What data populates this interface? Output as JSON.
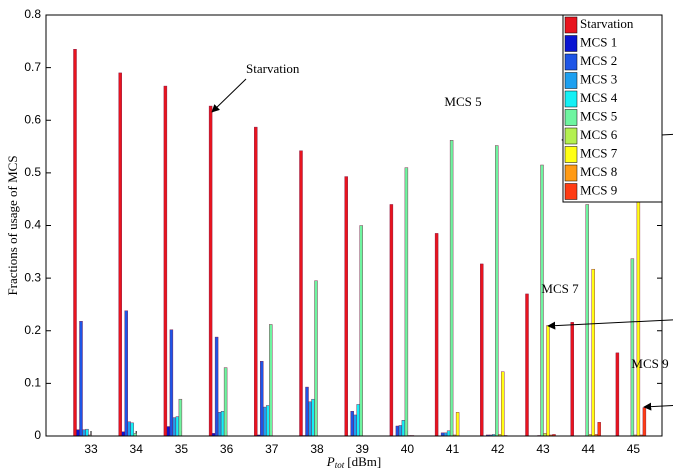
{
  "chart_data": {
    "type": "bar",
    "y_label": "Fractions of usage of MCS",
    "x_label": "P",
    "x_label_sub": "tot",
    "x_label_unit": "[dBm]",
    "categories": [
      "33",
      "34",
      "35",
      "36",
      "37",
      "38",
      "39",
      "40",
      "41",
      "42",
      "43",
      "44",
      "45"
    ],
    "series": [
      {
        "name": "Starvation",
        "color": "#e8141e",
        "values": [
          0.735,
          0.69,
          0.665,
          0.627,
          0.587,
          0.542,
          0.493,
          0.44,
          0.385,
          0.327,
          0.27,
          0.216,
          0.158
        ]
      },
      {
        "name": "MCS 1",
        "color": "#0a14d2",
        "values": [
          0.012,
          0.008,
          0.018,
          0.005,
          0.002,
          0.001,
          0,
          0,
          0,
          0,
          0,
          0,
          0
        ]
      },
      {
        "name": "MCS 2",
        "color": "#1e55e6",
        "values": [
          0.218,
          0.238,
          0.202,
          0.188,
          0.142,
          0.093,
          0.047,
          0.019,
          0.006,
          0.002,
          0,
          0,
          0
        ]
      },
      {
        "name": "MCS 3",
        "color": "#1ea0f0",
        "values": [
          0.012,
          0.027,
          0.035,
          0.045,
          0.055,
          0.065,
          0.04,
          0.02,
          0.006,
          0.002,
          0,
          0,
          0
        ]
      },
      {
        "name": "MCS 4",
        "color": "#14f0f5",
        "values": [
          0.013,
          0.025,
          0.037,
          0.047,
          0.058,
          0.07,
          0.06,
          0.03,
          0.01,
          0.003,
          0.001,
          0,
          0
        ]
      },
      {
        "name": "MCS 5",
        "color": "#6ef5a0",
        "values": [
          0.002,
          0.005,
          0.07,
          0.13,
          0.212,
          0.295,
          0.4,
          0.51,
          0.562,
          0.552,
          0.515,
          0.44,
          0.337
        ]
      },
      {
        "name": "MCS 6",
        "color": "#b4f050",
        "values": [
          0,
          0,
          0,
          0,
          0,
          0,
          0,
          0.001,
          0.002,
          0.003,
          0.005,
          0.003,
          0.002
        ]
      },
      {
        "name": "MCS 7",
        "color": "#ffff14",
        "values": [
          0,
          0,
          0,
          0,
          0,
          0,
          0,
          0.001,
          0.045,
          0.122,
          0.21,
          0.317,
          0.47
        ]
      },
      {
        "name": "MCS 8",
        "color": "#ff9a14",
        "values": [
          0,
          0,
          0,
          0,
          0,
          0,
          0,
          0,
          0,
          0.001,
          0.002,
          0.003,
          0.002
        ]
      },
      {
        "name": "MCS 9",
        "color": "#ff3c14",
        "values": [
          0,
          0,
          0,
          0,
          0,
          0,
          0,
          0,
          0,
          0,
          0.003,
          0.026,
          0.054
        ]
      }
    ],
    "ylim": [
      0,
      0.8
    ],
    "yticks": [
      0,
      0.1,
      0.2,
      0.3,
      0.4,
      0.5,
      0.6,
      0.7,
      0.8
    ],
    "legend": "upper right",
    "annotations": [
      {
        "text": "Starvation"
      },
      {
        "text": "MCS 5"
      },
      {
        "text": "MCS 7"
      },
      {
        "text": "MCS 9"
      }
    ]
  }
}
